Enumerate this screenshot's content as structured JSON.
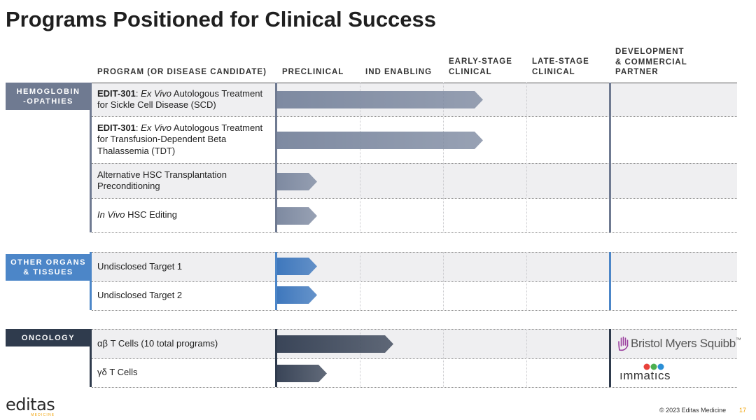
{
  "title": "Programs Positioned for Clinical Success",
  "headers": {
    "program": "PROGRAM (OR DISEASE CANDIDATE)",
    "preclinical": "PRECLINICAL",
    "ind": "IND ENABLING",
    "early": [
      "EARLY-STAGE",
      "CLINICAL"
    ],
    "late": [
      "LATE-STAGE",
      "CLINICAL"
    ],
    "partner": [
      "DEVELOPMENT",
      "& COMMERCIAL",
      "PARTNER"
    ]
  },
  "categories": [
    {
      "lines": [
        "HEMOGLOBIN",
        "-OPATHIES"
      ],
      "color": "#6f7a91"
    },
    {
      "lines": [
        "OTHER ORGANS",
        "& TISSUES"
      ],
      "color": "#4c86c8"
    },
    {
      "lines": [
        "ONCOLOGY"
      ],
      "color": "#2f3b4d"
    }
  ],
  "programs": [
    {
      "bold": "EDIT-301",
      "colon": ": ",
      "italic": "Ex Vivo",
      "rest": " Autologous Treatment for Sickle Cell Disease (SCD)",
      "stage_progress": 0.62,
      "color": "#7e8aa1"
    },
    {
      "bold": "EDIT-301",
      "colon": ": ",
      "italic": "Ex Vivo",
      "rest": " Autologous Treatment for Transfusion-Dependent Beta Thalassemia (TDT)",
      "stage_progress": 0.62,
      "color": "#7e8aa1"
    },
    {
      "bold": "",
      "colon": "",
      "italic": "",
      "rest": "Alternative HSC Transplantation Preconditioning",
      "stage_progress": 0.12,
      "color": "#7e8aa1"
    },
    {
      "bold": "",
      "colon": "",
      "italic": "In Vivo",
      "rest": " HSC Editing",
      "stage_progress": 0.12,
      "color": "#7e8aa1"
    },
    {
      "bold": "",
      "colon": "",
      "italic": "",
      "rest": "Undisclosed Target 1",
      "stage_progress": 0.12,
      "color": "#3f78bd"
    },
    {
      "bold": "",
      "colon": "",
      "italic": "",
      "rest": "Undisclosed Target 2",
      "stage_progress": 0.12,
      "color": "#3f78bd"
    },
    {
      "bold": "",
      "colon": "",
      "italic": "",
      "rest": "αβ T Cells (10 total programs)",
      "stage_progress": 0.35,
      "color": "#3a4558"
    },
    {
      "bold": "",
      "colon": "",
      "italic": "",
      "rest": "γδ T Cells",
      "stage_progress": 0.15,
      "color": "#3a4558"
    }
  ],
  "partners": {
    "bms": "Bristol Myers Squibb",
    "bms_tm": "™",
    "immatics": "ımmatıcs"
  },
  "footer": {
    "logo": "editas",
    "logo_sub": "MEDICINE",
    "copyright": "© 2023 Editas Medicine",
    "page": "17"
  },
  "colors": {
    "hemo": "#6f7a91",
    "organs": "#4c86c8",
    "oncology": "#2f3b4d",
    "accent_orange": "#f0a000"
  }
}
